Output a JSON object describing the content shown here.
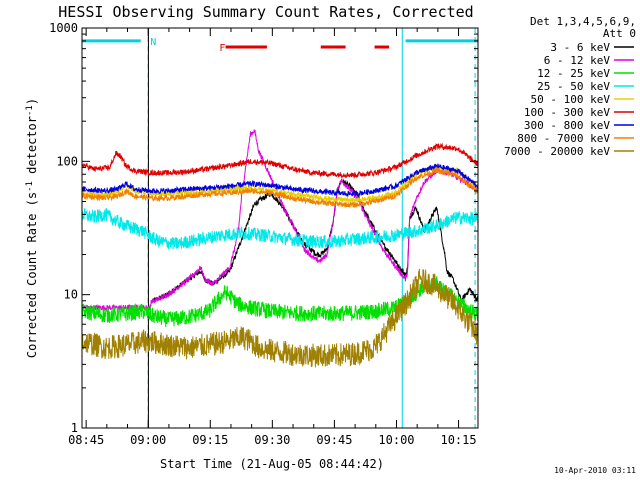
{
  "chart_data": {
    "type": "line",
    "title": "HESSI Observing Summary Count Rates, Corrected",
    "xlabel": "Start Time (21-Aug-05 08:44:42)",
    "ylabel": "Corrected Count Rate (s⁻¹ detector⁻¹)",
    "ylabel_main": "Corrected Count Rate (s",
    "ylabel_sup1": "-1",
    "ylabel_mid": " detector",
    "ylabel_sup2": "-1",
    "ylabel_end": ")",
    "xlim": [
      -0.7,
      95
    ],
    "ylim": [
      1,
      1000
    ],
    "yscale": "log",
    "x_ticks": [
      {
        "x": 0.3,
        "label": "08:45"
      },
      {
        "x": 15.3,
        "label": "09:00"
      },
      {
        "x": 30.3,
        "label": "09:15"
      },
      {
        "x": 45.3,
        "label": "09:30"
      },
      {
        "x": 60.3,
        "label": "09:45"
      },
      {
        "x": 75.3,
        "label": "10:00"
      },
      {
        "x": 90.3,
        "label": "10:15"
      }
    ],
    "y_ticks": [
      {
        "y": 1,
        "label": "1"
      },
      {
        "y": 10,
        "label": "10"
      },
      {
        "y": 100,
        "label": "100"
      },
      {
        "y": 1000,
        "label": "1000"
      }
    ],
    "legend_header_1": "Det 1,3,4,5,6,9,",
    "legend_header_2": "Att 0",
    "legend_position": "right",
    "series": [
      {
        "name": "3 - 6 keV",
        "color": "#000000",
        "noise": 0.02,
        "x": [
          -0.7,
          16,
          16.5,
          20,
          25,
          28,
          29,
          31,
          35,
          37,
          41,
          45,
          48,
          51,
          53,
          56,
          57,
          58.5,
          60,
          61,
          62,
          64,
          66,
          68,
          72,
          74,
          76,
          77.5,
          78,
          78.5,
          80,
          82,
          85,
          87,
          87.5,
          89,
          91,
          92,
          93,
          94,
          95
        ],
        "y": [
          null,
          null,
          9,
          10,
          13,
          15,
          13,
          12,
          15,
          22,
          48,
          58,
          45,
          30,
          24,
          20,
          20,
          22,
          35,
          60,
          72,
          65,
          55,
          40,
          24,
          20,
          16,
          14,
          16,
          38,
          45,
          30,
          45,
          20,
          15,
          13,
          9,
          10,
          11,
          10,
          9
        ]
      },
      {
        "name": "6 - 12 keV",
        "color": "#e000e0",
        "noise": 0.02,
        "x": [
          -0.7,
          12,
          15.9,
          16,
          17,
          20,
          25,
          28,
          29,
          31,
          35,
          37,
          38,
          40,
          41,
          42,
          45,
          48,
          51,
          53,
          56,
          57,
          58.5,
          60,
          61,
          62,
          64,
          66,
          68,
          72,
          74,
          76,
          77.5,
          78,
          78.5,
          80,
          82,
          85,
          88,
          90,
          92,
          95
        ],
        "y": [
          8,
          8,
          8,
          9,
          9,
          10,
          13,
          16,
          13,
          12,
          16,
          28,
          60,
          160,
          170,
          120,
          75,
          45,
          30,
          22,
          18,
          18,
          20,
          35,
          62,
          72,
          62,
          52,
          38,
          22,
          18,
          15,
          13,
          15,
          38,
          52,
          70,
          85,
          82,
          75,
          70,
          60
        ]
      },
      {
        "name": "12 - 25 keV",
        "color": "#00e000",
        "noise": 0.06,
        "x": [
          -0.7,
          5,
          10,
          14,
          16,
          20,
          25,
          30,
          32,
          34,
          37,
          40,
          45,
          50,
          55,
          60,
          65,
          70,
          75,
          78,
          81,
          85,
          88,
          90,
          92,
          95
        ],
        "y": [
          7.5,
          7,
          7.2,
          7.5,
          7,
          6.5,
          6.8,
          7.5,
          9,
          10.5,
          8.5,
          8,
          7.5,
          7.3,
          7.2,
          7.2,
          7.3,
          7.5,
          8,
          9,
          11,
          12,
          10,
          9,
          8,
          7
        ]
      },
      {
        "name": "25 - 50 keV",
        "color": "#00e8e8",
        "noise": 0.05,
        "x": [
          -0.7,
          2,
          5,
          8,
          11,
          14,
          16,
          18,
          22,
          28,
          33,
          38,
          43,
          50,
          55,
          60,
          65,
          70,
          75,
          80,
          85,
          90,
          95
        ],
        "y": [
          40,
          38,
          40,
          35,
          32,
          30,
          27,
          25,
          24,
          26,
          28,
          29,
          28,
          26,
          25,
          25,
          26,
          27,
          28,
          30,
          33,
          38,
          37
        ]
      },
      {
        "name": "50 - 100 keV",
        "color": "#e8d000",
        "noise": 0.02,
        "x": [
          -0.7,
          5,
          8,
          10,
          12,
          16,
          20,
          25,
          30,
          35,
          40,
          45,
          50,
          55,
          60,
          65,
          70,
          75,
          80,
          85,
          90,
          95
        ],
        "y": [
          57,
          56,
          60,
          66,
          60,
          58,
          57,
          58,
          60,
          62,
          63,
          60,
          57,
          54,
          52,
          51,
          53,
          58,
          80,
          90,
          85,
          62
        ]
      },
      {
        "name": "100 - 300 keV",
        "color": "#e00000",
        "noise": 0.02,
        "x": [
          -0.7,
          2,
          4,
          6,
          7.5,
          8.5,
          10,
          12,
          16,
          20,
          25,
          30,
          35,
          40,
          45,
          50,
          55,
          60,
          65,
          70,
          75,
          80,
          85,
          90,
          95
        ],
        "y": [
          95,
          88,
          88,
          90,
          115,
          110,
          92,
          85,
          82,
          82,
          84,
          88,
          93,
          100,
          97,
          88,
          82,
          80,
          79,
          82,
          90,
          110,
          130,
          125,
          95
        ]
      },
      {
        "name": "300 - 800 keV",
        "color": "#0000e0",
        "noise": 0.02,
        "x": [
          -0.7,
          5,
          8,
          10,
          12,
          16,
          20,
          25,
          30,
          35,
          40,
          45,
          50,
          55,
          60,
          65,
          70,
          75,
          80,
          85,
          90,
          95
        ],
        "y": [
          62,
          60,
          62,
          68,
          62,
          60,
          60,
          62,
          63,
          65,
          68,
          66,
          62,
          60,
          58,
          57,
          60,
          65,
          82,
          92,
          85,
          65
        ]
      },
      {
        "name": "800 - 7000 keV",
        "color": "#f08000",
        "noise": 0.02,
        "x": [
          -0.7,
          5,
          8,
          10,
          12,
          16,
          20,
          25,
          30,
          35,
          40,
          45,
          50,
          55,
          60,
          65,
          70,
          75,
          80,
          85,
          90,
          95
        ],
        "y": [
          55,
          53,
          55,
          60,
          55,
          53,
          53,
          55,
          57,
          58,
          60,
          58,
          53,
          50,
          48,
          47,
          50,
          55,
          75,
          85,
          78,
          58
        ]
      },
      {
        "name": "7000 - 20000 keV",
        "color": "#a08000",
        "noise": 0.09,
        "x": [
          -0.7,
          5,
          10,
          15,
          20,
          25,
          30,
          35,
          38,
          40,
          42,
          45,
          50,
          55,
          60,
          65,
          70,
          74,
          78,
          81,
          84,
          87,
          90,
          93,
          95
        ],
        "y": [
          4.5,
          4,
          4.2,
          4.5,
          4.2,
          4,
          4.2,
          4.5,
          4.8,
          4.5,
          4,
          3.8,
          3.6,
          3.5,
          3.5,
          3.6,
          4,
          6,
          9,
          13,
          12,
          10,
          8,
          6,
          5
        ]
      }
    ],
    "annotations": [
      {
        "kind": "segments",
        "color": "#00d0e0",
        "label": "N",
        "y": 800,
        "segments": [
          [
            -0.7,
            13.5
          ],
          [
            77.5,
            95
          ]
        ],
        "label_x": 15.8
      },
      {
        "kind": "segments",
        "color": "#e00000",
        "label": "F",
        "y": 720,
        "segments": [
          [
            34,
            44
          ],
          [
            57,
            63
          ],
          [
            70,
            73.5
          ]
        ],
        "label_x": 32.5
      },
      {
        "kind": "vline",
        "color": "#00d0e0",
        "style": "dashed",
        "x": 15.3
      },
      {
        "kind": "vline",
        "color": "#00d0e0",
        "style": "solid",
        "x": 76.7
      },
      {
        "kind": "vline",
        "color": "#00d0e0",
        "style": "dashed",
        "x": 94.3
      },
      {
        "kind": "vline",
        "color": "#000000",
        "style": "solid",
        "x": 15.35
      }
    ],
    "grid": false
  },
  "footer": {
    "timestamp": "10-Apr-2010 03:11"
  }
}
